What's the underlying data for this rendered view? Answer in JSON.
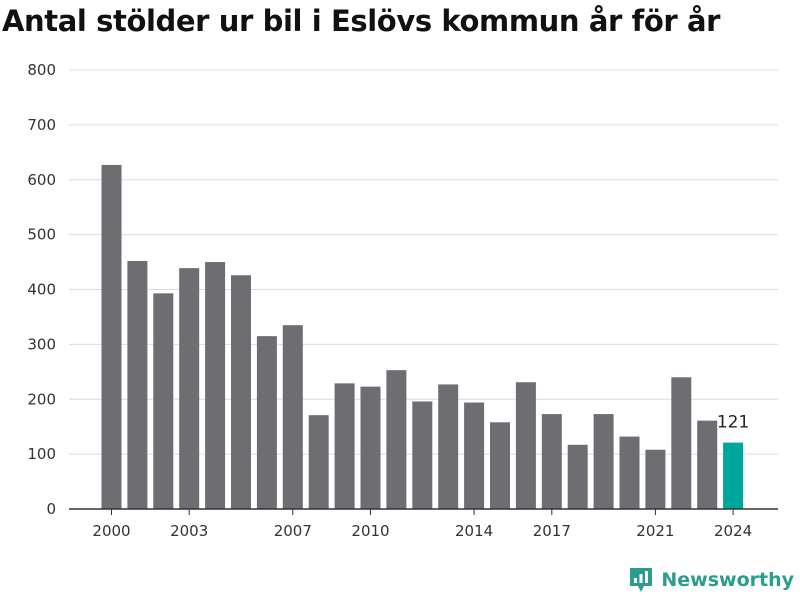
{
  "title": "Antal stölder ur bil i Eslövs kommun år för år",
  "brand": {
    "name": "Newsworthy",
    "icon": "newsworthy-logo-icon",
    "color": "#2a9d8f"
  },
  "colors": {
    "bar": "#6e6d71",
    "highlight": "#00a69a",
    "grid": "#dcdcdc",
    "axis": "#333333"
  },
  "chart_data": {
    "type": "bar",
    "title": "Antal stölder ur bil i Eslövs kommun år för år",
    "xlabel": "",
    "ylabel": "",
    "ylim": [
      0,
      800
    ],
    "yticks": [
      0,
      100,
      200,
      300,
      400,
      500,
      600,
      700,
      800
    ],
    "xtick_labels": [
      "2000",
      "2003",
      "2007",
      "2010",
      "2014",
      "2017",
      "2021",
      "2024"
    ],
    "grid": "horizontal",
    "categories": [
      "2000",
      "2001",
      "2002",
      "2003",
      "2004",
      "2005",
      "2006",
      "2007",
      "2008",
      "2009",
      "2010",
      "2011",
      "2012",
      "2013",
      "2014",
      "2015",
      "2016",
      "2017",
      "2018",
      "2019",
      "2020",
      "2021",
      "2022",
      "2023",
      "2024"
    ],
    "values": [
      627,
      452,
      393,
      439,
      450,
      426,
      315,
      335,
      171,
      229,
      223,
      253,
      196,
      227,
      194,
      158,
      231,
      173,
      117,
      173,
      132,
      108,
      240,
      161,
      121
    ],
    "highlight": {
      "category": "2024",
      "label": "121"
    }
  }
}
